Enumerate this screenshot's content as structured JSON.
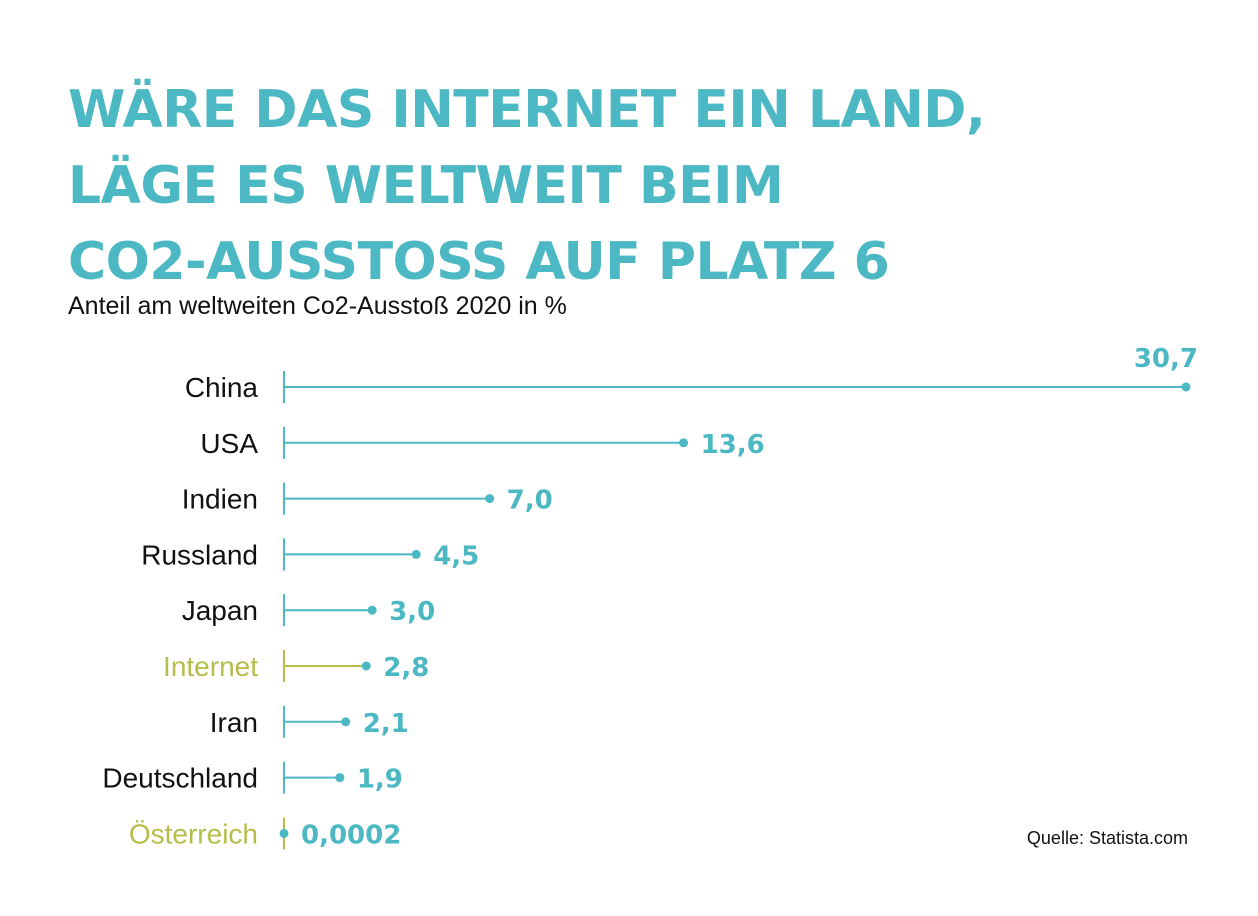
{
  "title_lines": [
    "WÄRE DAS INTERNET EIN LAND,",
    "LÄGE ES WELTWEIT BEIM",
    "CO2-AUSSTOSS AUF PLATZ 6"
  ],
  "source": "Quelle: Statista.com",
  "colors": {
    "accent": "#4bb8c4",
    "highlight": "#b7bd4a",
    "text": "#111111"
  },
  "chart_data": {
    "type": "bar",
    "subtitle": "Anteil am weltweiten Co2-Ausstoß 2020 in %",
    "categories": [
      "China",
      "USA",
      "Indien",
      "Russland",
      "Japan",
      "Internet",
      "Iran",
      "Deutschland",
      "Österreich"
    ],
    "values": [
      30.7,
      13.6,
      7.0,
      4.5,
      3.0,
      2.8,
      2.1,
      1.9,
      0.0002
    ],
    "value_labels": [
      "30,7",
      "13,6",
      "7,0",
      "4,5",
      "3,0",
      "2,8",
      "2,1",
      "1,9",
      "0,0002"
    ],
    "highlighted": [
      "Internet",
      "Österreich"
    ],
    "xlim": [
      0,
      30.7
    ],
    "grid": false,
    "legend": "none",
    "style": "lollipop"
  }
}
